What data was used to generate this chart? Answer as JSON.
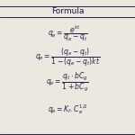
{
  "title": "Formula",
  "formulas": [
    "$q_e = \\dfrac{e^{kt}}{q_e-q_t}$",
    "$q_e = \\dfrac{(q_e-q_t)}{1-(q_e-q_t)kt}$",
    "$q_e = \\dfrac{q_t \\cdot bC_g}{1+bC_g}$",
    "$q_e = K_f . C_e^{1/2}$"
  ],
  "bg_color": "#ede8df",
  "text_color": "#2a2050",
  "header_color": "#1a1050",
  "line_color": "#2a2050",
  "font_size": 5.5,
  "header_font_size": 6.5
}
